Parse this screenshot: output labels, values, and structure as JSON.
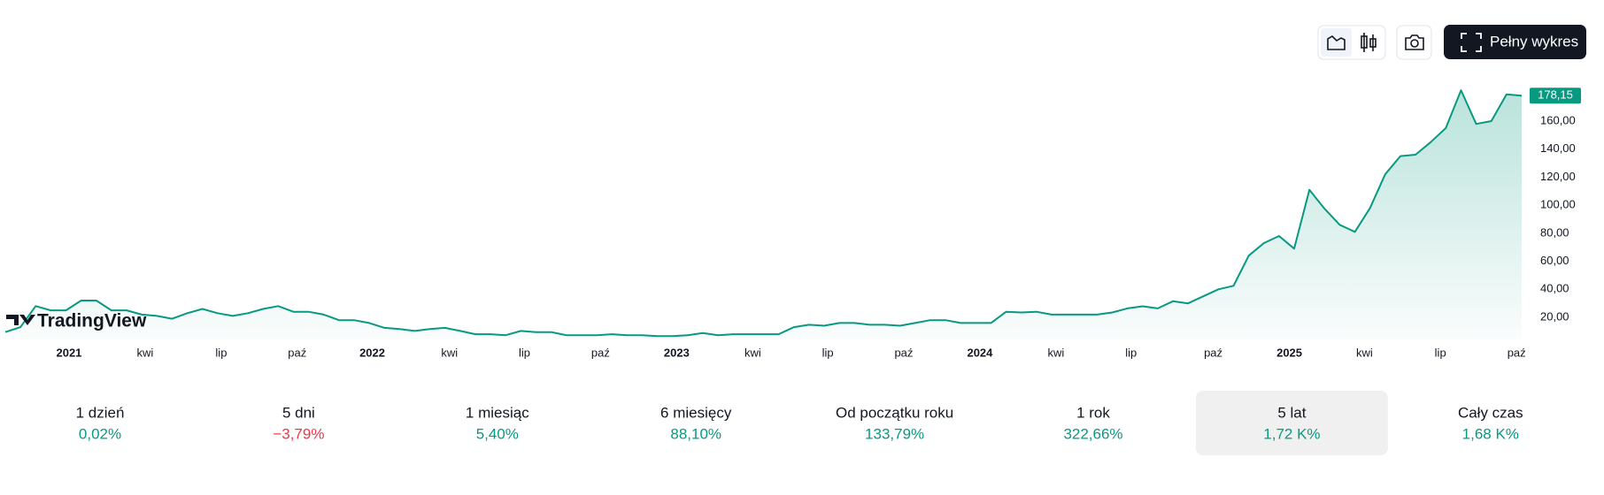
{
  "toolbar": {
    "fullscreen_button": "Pełny wykres"
  },
  "chart_data": {
    "type": "area",
    "logo": "TradingView",
    "color": "#089981",
    "values": [
      9.5,
      13,
      28,
      25,
      25,
      32,
      32,
      25,
      25,
      22,
      21,
      19,
      23,
      26,
      23,
      21,
      23,
      26,
      28,
      24,
      24,
      22,
      18,
      18,
      16,
      12.5,
      11.7,
      10.3,
      11.7,
      12.5,
      10.3,
      8,
      8,
      7.3,
      10.3,
      9.5,
      9.5,
      7.3,
      7.3,
      7.3,
      8,
      7.3,
      7.3,
      6.6,
      6.6,
      7.3,
      8.8,
      7.3,
      8,
      8,
      8,
      8,
      13,
      14.7,
      14,
      16,
      16,
      14.7,
      14.7,
      14,
      16,
      18,
      18,
      16,
      16,
      16,
      24,
      23.5,
      24,
      22,
      22,
      22,
      22,
      23.5,
      26.4,
      27.9,
      26.4,
      31.5,
      30,
      35,
      40,
      42.5,
      64,
      73,
      78,
      69,
      111,
      97.5,
      86,
      81,
      98,
      122,
      135,
      136,
      145,
      155,
      182,
      158,
      160,
      179,
      178.15
    ],
    "xlim": [
      0,
      100
    ],
    "xticks": [
      {
        "value": 4.2,
        "label": "2021"
      },
      {
        "value": 9.22,
        "label": "kwi"
      },
      {
        "value": 14.24,
        "label": "lip"
      },
      {
        "value": 19.25,
        "label": "paź"
      },
      {
        "value": 24.2,
        "label": "2022"
      },
      {
        "value": 29.29,
        "label": "kwi"
      },
      {
        "value": 34.24,
        "label": "lip"
      },
      {
        "value": 39.25,
        "label": "paź"
      },
      {
        "value": 44.27,
        "label": "2023"
      },
      {
        "value": 49.29,
        "label": "kwi"
      },
      {
        "value": 54.24,
        "label": "lip"
      },
      {
        "value": 59.25,
        "label": "paź"
      },
      {
        "value": 64.27,
        "label": "2024"
      },
      {
        "value": 69.29,
        "label": "kwi"
      },
      {
        "value": 74.24,
        "label": "lip"
      },
      {
        "value": 79.66,
        "label": "paź"
      },
      {
        "value": 84.68,
        "label": "2025"
      },
      {
        "value": 89.63,
        "label": "kwi"
      },
      {
        "value": 94.64,
        "label": "lip"
      },
      {
        "value": 99.66,
        "label": "paź"
      }
    ],
    "ylim": [
      4,
      190
    ],
    "yticks": [
      {
        "value": 20,
        "label": "20,00"
      },
      {
        "value": 40,
        "label": "40,00"
      },
      {
        "value": 60,
        "label": "60,00"
      },
      {
        "value": 80,
        "label": "80,00"
      },
      {
        "value": 100,
        "label": "100,00"
      },
      {
        "value": 120,
        "label": "120,00"
      },
      {
        "value": 140,
        "label": "140,00"
      },
      {
        "value": 160,
        "label": "160,00"
      }
    ],
    "last_price": {
      "value": 178.15,
      "label": "178,15"
    }
  },
  "periods": [
    {
      "label": "1 dzień",
      "value": "0,02%",
      "color": "#089981"
    },
    {
      "label": "5 dni",
      "value": "−3,79%",
      "color": "#f23645"
    },
    {
      "label": "1 miesiąc",
      "value": "5,40%",
      "color": "#089981"
    },
    {
      "label": "6 miesięcy",
      "value": "88,10%",
      "color": "#089981"
    },
    {
      "label": "Od początku roku",
      "value": "133,79%",
      "color": "#089981"
    },
    {
      "label": "1 rok",
      "value": "322,66%",
      "color": "#089981"
    },
    {
      "label": "5 lat",
      "value": "1,72 K%",
      "color": "#089981"
    },
    {
      "label": "Cały czas",
      "value": "1,68 K%",
      "color": "#089981"
    }
  ],
  "selected_period": 6
}
